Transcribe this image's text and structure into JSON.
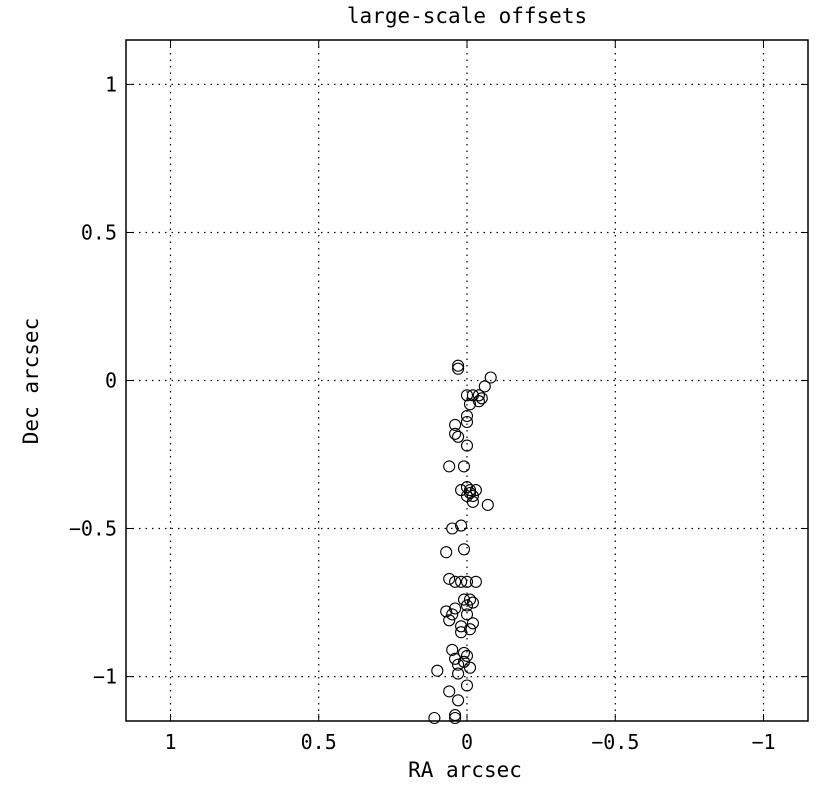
{
  "chart_data": {
    "type": "scatter",
    "title": "large-scale offsets",
    "xlabel": "RA arcsec",
    "ylabel": "Dec arcsec",
    "xlim": [
      1.15,
      -1.15
    ],
    "ylim": [
      -1.15,
      1.15
    ],
    "x_reversed": true,
    "grid": true,
    "grid_style": "dotted",
    "marker": "open-circle",
    "xticks": [
      1,
      0.5,
      0,
      -0.5,
      -1
    ],
    "xtick_labels": [
      "1",
      "0.5",
      "0",
      "−0.5",
      "−1"
    ],
    "yticks": [
      1,
      0.5,
      0,
      -0.5,
      -1
    ],
    "ytick_labels": [
      "1",
      "0.5",
      "0",
      "−0.5",
      "−1"
    ],
    "series": [
      {
        "points": [
          [
            0.03,
            0.05
          ],
          [
            0.03,
            0.04
          ],
          [
            -0.08,
            0.01
          ],
          [
            -0.06,
            -0.02
          ],
          [
            -0.04,
            -0.05
          ],
          [
            -0.02,
            -0.05
          ],
          [
            -0.05,
            -0.06
          ],
          [
            0.0,
            -0.05
          ],
          [
            -0.04,
            -0.07
          ],
          [
            -0.01,
            -0.08
          ],
          [
            0.0,
            -0.12
          ],
          [
            0.0,
            -0.14
          ],
          [
            0.04,
            -0.15
          ],
          [
            0.04,
            -0.18
          ],
          [
            0.03,
            -0.19
          ],
          [
            0.0,
            -0.22
          ],
          [
            0.06,
            -0.29
          ],
          [
            0.01,
            -0.29
          ],
          [
            0.0,
            -0.36
          ],
          [
            0.02,
            -0.37
          ],
          [
            -0.01,
            -0.37
          ],
          [
            -0.03,
            -0.37
          ],
          [
            -0.01,
            -0.38
          ],
          [
            0.0,
            -0.39
          ],
          [
            -0.02,
            -0.39
          ],
          [
            -0.02,
            -0.41
          ],
          [
            -0.07,
            -0.42
          ],
          [
            0.02,
            -0.49
          ],
          [
            0.05,
            -0.5
          ],
          [
            0.01,
            -0.57
          ],
          [
            0.07,
            -0.58
          ],
          [
            0.06,
            -0.67
          ],
          [
            0.04,
            -0.68
          ],
          [
            0.02,
            -0.68
          ],
          [
            0.0,
            -0.68
          ],
          [
            -0.03,
            -0.68
          ],
          [
            0.01,
            -0.74
          ],
          [
            -0.01,
            -0.74
          ],
          [
            -0.02,
            -0.75
          ],
          [
            0.0,
            -0.76
          ],
          [
            0.04,
            -0.77
          ],
          [
            0.07,
            -0.78
          ],
          [
            0.05,
            -0.79
          ],
          [
            0.0,
            -0.79
          ],
          [
            0.06,
            -0.81
          ],
          [
            -0.02,
            -0.82
          ],
          [
            0.02,
            -0.83
          ],
          [
            -0.01,
            -0.84
          ],
          [
            0.02,
            -0.85
          ],
          [
            0.05,
            -0.91
          ],
          [
            0.01,
            -0.92
          ],
          [
            0.0,
            -0.93
          ],
          [
            0.04,
            -0.94
          ],
          [
            0.01,
            -0.95
          ],
          [
            0.03,
            -0.96
          ],
          [
            -0.01,
            -0.97
          ],
          [
            0.1,
            -0.98
          ],
          [
            0.03,
            -0.99
          ],
          [
            0.0,
            -1.03
          ],
          [
            0.06,
            -1.05
          ],
          [
            0.03,
            -1.08
          ],
          [
            0.04,
            -1.13
          ],
          [
            0.11,
            -1.14
          ],
          [
            0.04,
            -1.14
          ]
        ]
      }
    ]
  }
}
